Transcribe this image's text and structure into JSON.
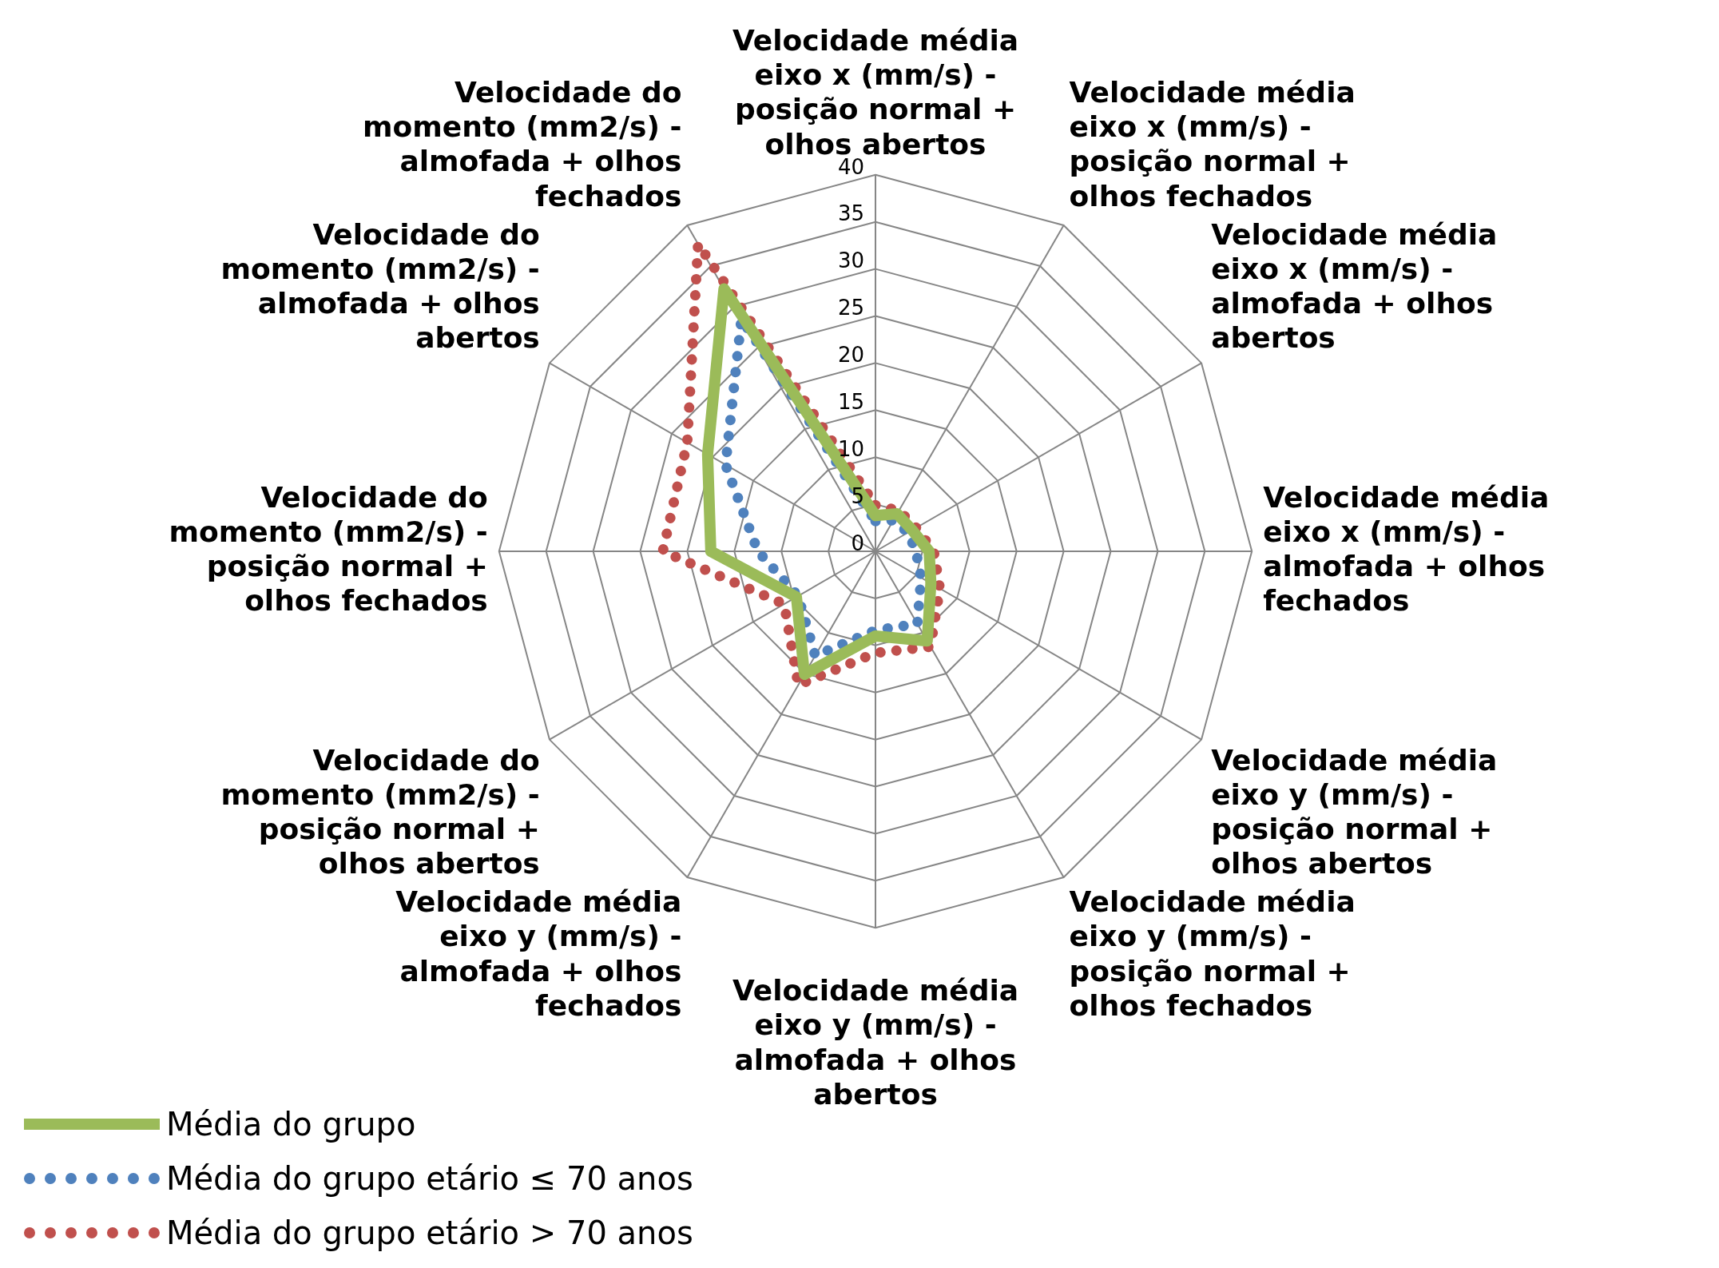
{
  "chart_data": {
    "type": "radar",
    "categories": [
      "Velocidade média eixo x (mm/s) - posição normal + olhos abertos",
      "Velocidade média eixo x (mm/s) - posição normal + olhos fechados",
      "Velocidade média eixo x (mm/s) - almofada + olhos abertos",
      "Velocidade média eixo x (mm/s) - almofada + olhos fechados",
      "Velocidade média eixo y (mm/s) - posição normal + olhos abertos",
      "Velocidade média eixo y (mm/s) - posição normal + olhos fechados",
      "Velocidade média eixo y (mm/s) - almofada + olhos abertos",
      "Velocidade média eixo y (mm/s) - almofada + olhos fechados",
      "Velocidade do momento (mm2/s) - posição normal + olhos abertos",
      "Velocidade do momento (mm2/s) - posição normal + olhos fechados",
      "Velocidade do momento (mm2/s) - almofada + olhos abertos",
      "Velocidade do momento (mm2/s) - almofada + olhos fechados"
    ],
    "series": [
      {
        "name": "Média do grupo",
        "color": "#9bbb59",
        "line_style": "solid",
        "values": [
          3.8,
          4.6,
          4.5,
          5.7,
          6.8,
          11.0,
          9.0,
          15.1,
          9.7,
          17.5,
          20.6,
          32.2
        ]
      },
      {
        "name": "Média do grupo etário ≤ 70 anos",
        "color": "#4f81bd",
        "line_style": "dotted",
        "values": [
          3.2,
          3.8,
          4.0,
          4.3,
          5.6,
          8.9,
          8.4,
          12.8,
          9.5,
          12.5,
          18.4,
          28.5
        ]
      },
      {
        "name": "Média do grupo etário > 70 anos",
        "color": "#c0504d",
        "line_style": "dotted",
        "values": [
          4.9,
          5.0,
          5.0,
          6.2,
          7.9,
          11.7,
          10.8,
          16.4,
          11.2,
          22.6,
          23.1,
          37.7
        ]
      }
    ],
    "ylim": [
      0,
      40
    ],
    "yticks": [
      0,
      5,
      10,
      15,
      20,
      25,
      30,
      35,
      40
    ],
    "grid": true,
    "legend": "bottom left",
    "marker": "none"
  }
}
